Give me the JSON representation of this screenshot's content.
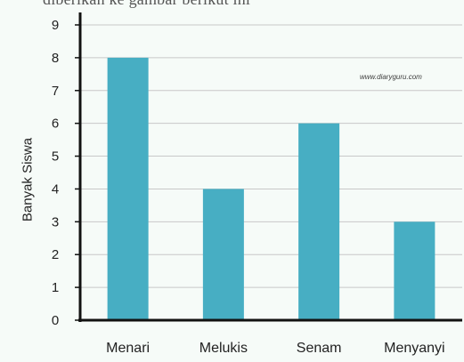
{
  "caption": "diberikan ke gambar berikut ini",
  "watermark": "www.diaryguru.com",
  "colors": {
    "bar": "#47aec3",
    "axis": "#111111",
    "grid": "#c8c8c8",
    "background": "#f6fbf8"
  },
  "chart_data": {
    "type": "bar",
    "title": "",
    "xlabel": "",
    "ylabel": "Banyak Siswa",
    "categories": [
      "Menari",
      "Melukis",
      "Senam",
      "Menyanyi"
    ],
    "values": [
      8,
      4,
      6,
      3
    ],
    "ylim": [
      0,
      9
    ],
    "yticks": [
      0,
      1,
      2,
      3,
      4,
      5,
      6,
      7,
      8,
      9
    ],
    "grid": true,
    "legend": "none"
  }
}
